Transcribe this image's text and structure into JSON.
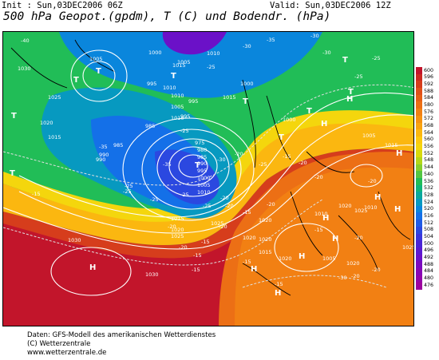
{
  "header": {
    "init": "Init : Sun,03DEC2006 06Z",
    "valid": "Valid: Sun,03DEC2006 12Z",
    "title": "500 hPa Geopot.(gpdm), T (C) und Bodendr. (hPa)"
  },
  "legend": {
    "values": [
      "600",
      "596",
      "592",
      "588",
      "584",
      "580",
      "576",
      "572",
      "568",
      "564",
      "560",
      "556",
      "552",
      "548",
      "544",
      "540",
      "536",
      "532",
      "528",
      "524",
      "520",
      "516",
      "512",
      "508",
      "504",
      "500",
      "496",
      "492",
      "488",
      "484",
      "480",
      "476"
    ],
    "colors": [
      "#c2152b",
      "#cc2a22",
      "#d63d1c",
      "#e0501a",
      "#e65f17",
      "#ec6f15",
      "#f28013",
      "#f69212",
      "#f9a411",
      "#fbb710",
      "#fcc90f",
      "#f4d60d",
      "#d8da0c",
      "#b3d619",
      "#86cf2d",
      "#53c642",
      "#21bd57",
      "#10b57a",
      "#0aa89c",
      "#0799c0",
      "#0a86dc",
      "#1470e8",
      "#1f5be5",
      "#2b48e0",
      "#3a36dc",
      "#4a25d6",
      "#5b1ad0",
      "#6b11c8",
      "#7a0bbf",
      "#8707b5",
      "#9304aa",
      "#9d029e"
    ]
  },
  "map": {
    "centers": [
      {
        "letter": "T"
      },
      {
        "letter": "T"
      },
      {
        "letter": "T"
      },
      {
        "letter": "T"
      },
      {
        "letter": "T"
      },
      {
        "letter": "T"
      },
      {
        "letter": "T"
      },
      {
        "letter": "T"
      },
      {
        "letter": "T"
      },
      {
        "letter": "T"
      },
      {
        "letter": "T"
      },
      {
        "letter": "H"
      },
      {
        "letter": "H"
      },
      {
        "letter": "H"
      },
      {
        "letter": "H"
      },
      {
        "letter": "H"
      },
      {
        "letter": "H"
      },
      {
        "letter": "H"
      },
      {
        "letter": "H"
      },
      {
        "letter": "H"
      },
      {
        "letter": "H"
      },
      {
        "letter": "H"
      }
    ],
    "pressure_labels": [
      "1005",
      "1005",
      "1000",
      "1015",
      "1010",
      "995",
      "1030",
      "1025",
      "1020",
      "1015",
      "990",
      "985",
      "1005",
      "1010",
      "1015",
      "1010",
      "1000",
      "995",
      "975",
      "980",
      "985",
      "990",
      "995",
      "1000",
      "1005",
      "1010",
      "1015",
      "1020",
      "1025",
      "1030",
      "1030",
      "1025",
      "1020",
      "1025",
      "1020",
      "1015",
      "1010",
      "1005",
      "1000",
      "1020",
      "1010",
      "1005",
      "1020",
      "1025",
      "1020",
      "985",
      "990",
      "1010",
      "995",
      "1015",
      "1020"
    ],
    "temp_labels": [
      "-40",
      "-35",
      "-30",
      "-30",
      "-25",
      "-25",
      "-35",
      "-35",
      "-30",
      "-25",
      "-20",
      "-25",
      "-25",
      "-25",
      "-20",
      "-20",
      "-15",
      "-15",
      "-20",
      "-20",
      "-20",
      "-20",
      "-15",
      "-15",
      "-15",
      "-20",
      "-20",
      "-25",
      "-25",
      "-25",
      "-15",
      "-20",
      "-20",
      "-15",
      "-20",
      "-30",
      "-15",
      "-20",
      "-15",
      "-25",
      "-30"
    ]
  },
  "footer": {
    "line1": "Daten: GFS-Modell des amerikanischen Wetterdienstes",
    "line2": "(C) Wetterzentrale",
    "line3": "www.wetterzentrale.de"
  }
}
